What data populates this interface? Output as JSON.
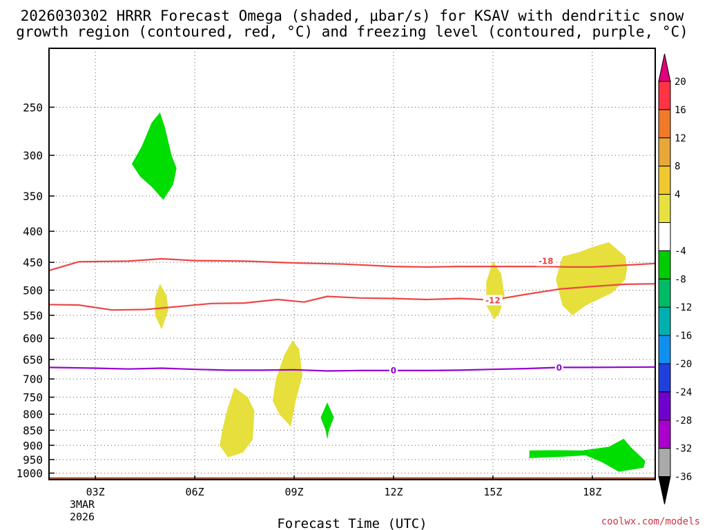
{
  "chart_data": {
    "type": "contour",
    "title_line1": "2026030302 HRRR Forecast Omega (shaded, μbar/s) for KSAV with dendritic snow",
    "title_line2": "growth region (contoured, red, °C) and freezing level (contoured, purple, °C)",
    "xlabel": "Forecast Time (UTC)",
    "credit": "coolwx.com/models",
    "date_label": [
      "3MAR",
      "2026"
    ],
    "x_range_hours": [
      1.6,
      19.9
    ],
    "y_range_hpa": [
      1025,
      200
    ],
    "x_ticks": [
      {
        "h": 3,
        "label": "03Z"
      },
      {
        "h": 6,
        "label": "06Z"
      },
      {
        "h": 9,
        "label": "09Z"
      },
      {
        "h": 12,
        "label": "12Z"
      },
      {
        "h": 15,
        "label": "15Z"
      },
      {
        "h": 18,
        "label": "18Z"
      }
    ],
    "y_ticks": [
      250,
      300,
      350,
      400,
      450,
      500,
      550,
      600,
      650,
      700,
      750,
      800,
      850,
      900,
      950,
      1000
    ],
    "surface_hpa": 1016,
    "surface_color": "#a0522d",
    "colorbar": {
      "labels": [
        "20",
        "16",
        "12",
        "8",
        "4",
        "-4",
        "-8",
        "-12",
        "-16",
        "-20",
        "-24",
        "-28",
        "-32",
        "-36"
      ],
      "colors": [
        "#ff3344",
        "#f07a28",
        "#e8a838",
        "#f0c830",
        "#e8e040",
        "#ffffff",
        "#00cc00",
        "#00bb66",
        "#00b0b0",
        "#1090ee",
        "#2040dd",
        "#7000cc",
        "#aa00cc",
        "#aaaaaa"
      ],
      "top_arrow_color": "#e0007a",
      "bottom_arrow_color": "#000000"
    },
    "shaded_regions": [
      {
        "name": "green-upper",
        "color": "#00dd00",
        "points": [
          [
            4.1,
            310
          ],
          [
            4.4,
            290
          ],
          [
            4.7,
            265
          ],
          [
            4.95,
            255
          ],
          [
            5.1,
            270
          ],
          [
            5.3,
            300
          ],
          [
            5.45,
            315
          ],
          [
            5.35,
            335
          ],
          [
            5.05,
            355
          ],
          [
            4.7,
            338
          ],
          [
            4.35,
            325
          ]
        ]
      },
      {
        "name": "yellow-mid-left",
        "color": "#e6df3c",
        "points": [
          [
            4.95,
            488
          ],
          [
            5.15,
            510
          ],
          [
            5.2,
            540
          ],
          [
            5.0,
            580
          ],
          [
            4.8,
            550
          ],
          [
            4.8,
            515
          ]
        ]
      },
      {
        "name": "yellow-low-07z",
        "color": "#e6df3c",
        "points": [
          [
            7.2,
            723
          ],
          [
            7.6,
            750
          ],
          [
            7.8,
            790
          ],
          [
            7.75,
            880
          ],
          [
            7.45,
            925
          ],
          [
            7.0,
            942
          ],
          [
            6.75,
            900
          ],
          [
            6.85,
            840
          ],
          [
            7.0,
            780
          ]
        ]
      },
      {
        "name": "yellow-low-09z",
        "color": "#e6df3c",
        "points": [
          [
            8.95,
            605
          ],
          [
            9.15,
            625
          ],
          [
            9.25,
            690
          ],
          [
            9.05,
            760
          ],
          [
            8.9,
            838
          ],
          [
            8.55,
            800
          ],
          [
            8.35,
            760
          ],
          [
            8.45,
            700
          ],
          [
            8.7,
            640
          ]
        ]
      },
      {
        "name": "green-10z",
        "color": "#00dd00",
        "points": [
          [
            10.0,
            765
          ],
          [
            10.2,
            810
          ],
          [
            10.05,
            850
          ],
          [
            10.0,
            880
          ],
          [
            9.95,
            850
          ],
          [
            9.8,
            810
          ]
        ]
      },
      {
        "name": "yellow-15z",
        "color": "#e6df3c",
        "points": [
          [
            15.0,
            448
          ],
          [
            15.25,
            470
          ],
          [
            15.35,
            510
          ],
          [
            15.2,
            545
          ],
          [
            15.05,
            558
          ],
          [
            14.8,
            530
          ],
          [
            14.8,
            485
          ]
        ]
      },
      {
        "name": "yellow-18z",
        "color": "#e6df3c",
        "points": [
          [
            17.1,
            440
          ],
          [
            17.6,
            433
          ],
          [
            18.0,
            425
          ],
          [
            18.5,
            417
          ],
          [
            19.0,
            440
          ],
          [
            19.05,
            460
          ],
          [
            19.0,
            480
          ],
          [
            18.6,
            505
          ],
          [
            17.8,
            530
          ],
          [
            17.4,
            550
          ],
          [
            17.1,
            530
          ],
          [
            16.9,
            480
          ]
        ]
      },
      {
        "name": "green-surface-right",
        "color": "#00dd00",
        "points": [
          [
            16.1,
            918
          ],
          [
            16.8,
            917
          ],
          [
            17.7,
            918
          ],
          [
            18.5,
            905
          ],
          [
            18.95,
            878
          ],
          [
            19.15,
            905
          ],
          [
            19.6,
            955
          ],
          [
            19.55,
            980
          ],
          [
            18.8,
            995
          ],
          [
            18.3,
            960
          ],
          [
            17.8,
            935
          ],
          [
            17.1,
            940
          ],
          [
            16.1,
            945
          ]
        ]
      }
    ],
    "contours": [
      {
        "name": "isotherm-minus-18",
        "label": "-18",
        "color": "#ee4444",
        "label_at": [
          16.6,
          448
        ],
        "points": [
          [
            1.6,
            464
          ],
          [
            2.5,
            449
          ],
          [
            4.0,
            448
          ],
          [
            5.0,
            444
          ],
          [
            6.0,
            447
          ],
          [
            7.5,
            448
          ],
          [
            9.0,
            451
          ],
          [
            10.5,
            453
          ],
          [
            12.0,
            457
          ],
          [
            13.0,
            458
          ],
          [
            14.0,
            457
          ],
          [
            15.0,
            457
          ],
          [
            16.6,
            457
          ],
          [
            17.2,
            458
          ],
          [
            18.0,
            458
          ],
          [
            19.9,
            452
          ]
        ]
      },
      {
        "name": "isotherm-minus-12",
        "label": "-12",
        "color": "#ee4444",
        "label_at": [
          15.0,
          520
        ],
        "points": [
          [
            1.6,
            528
          ],
          [
            2.5,
            529
          ],
          [
            3.5,
            539
          ],
          [
            4.5,
            538
          ],
          [
            5.5,
            532
          ],
          [
            6.5,
            526
          ],
          [
            7.5,
            525
          ],
          [
            8.5,
            518
          ],
          [
            9.3,
            523
          ],
          [
            10.0,
            512
          ],
          [
            11.0,
            515
          ],
          [
            12.0,
            516
          ],
          [
            13.0,
            518
          ],
          [
            14.0,
            516
          ],
          [
            15.0,
            519
          ],
          [
            16.0,
            508
          ],
          [
            17.0,
            498
          ],
          [
            18.0,
            493
          ],
          [
            19.0,
            489
          ],
          [
            19.9,
            488
          ]
        ]
      },
      {
        "name": "freezing-level-0",
        "label": "0",
        "color": "#9400d3",
        "label_at": [
          12.0,
          678
        ],
        "label_at2": [
          17.0,
          671
        ],
        "points": [
          [
            1.6,
            670
          ],
          [
            3.0,
            672
          ],
          [
            4.0,
            674
          ],
          [
            5.0,
            672
          ],
          [
            6.0,
            675
          ],
          [
            7.0,
            677
          ],
          [
            8.0,
            677
          ],
          [
            9.0,
            676
          ],
          [
            10.0,
            679
          ],
          [
            11.0,
            678
          ],
          [
            12.0,
            678
          ],
          [
            13.0,
            678
          ],
          [
            14.0,
            677
          ],
          [
            15.0,
            675
          ],
          [
            16.0,
            673
          ],
          [
            17.0,
            670
          ],
          [
            18.0,
            670
          ],
          [
            19.9,
            669
          ]
        ]
      }
    ]
  }
}
